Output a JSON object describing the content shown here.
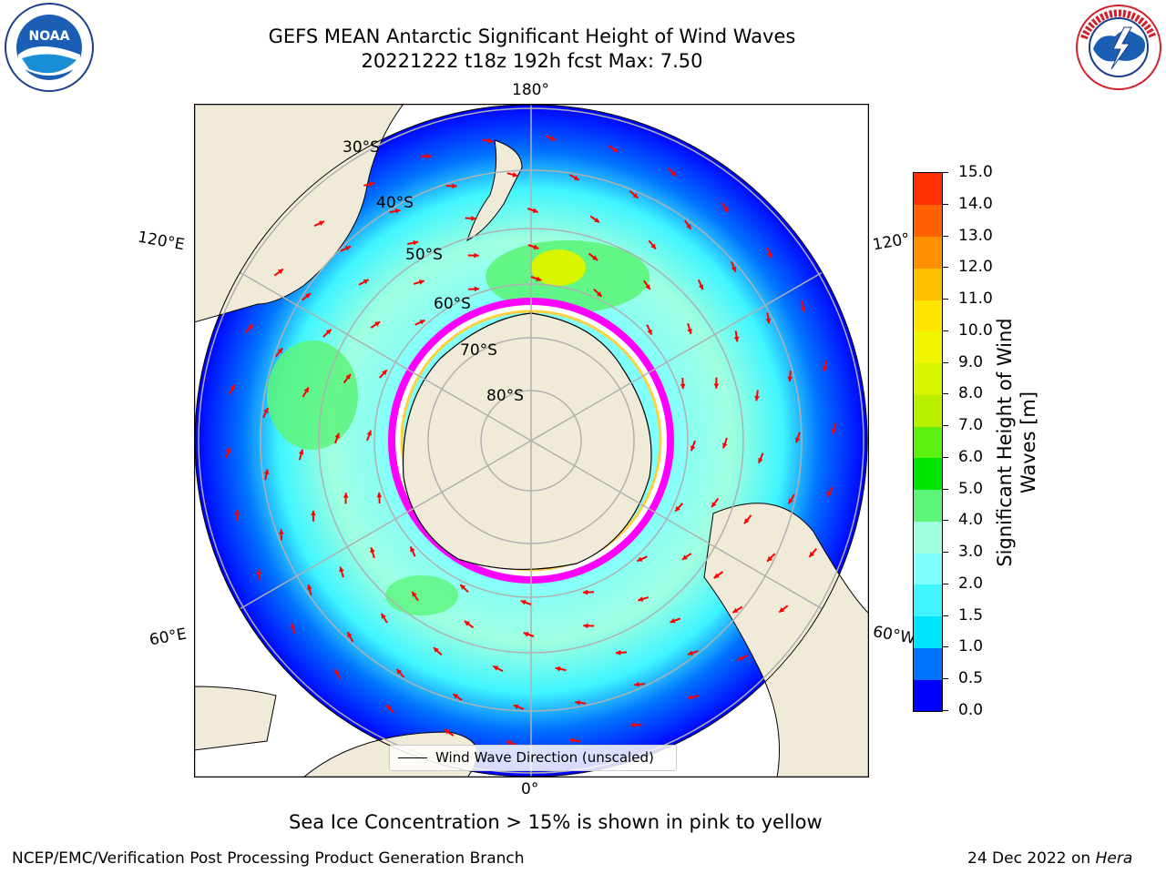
{
  "header": {
    "title_line1": "GEFS MEAN Antarctic Significant Height of Wind Waves",
    "title_line2": "20221222 t18z 192h fcst   Max: 7.50"
  },
  "logos": {
    "left": {
      "name": "NOAA",
      "text": "NOAA",
      "ring_text": "NATIONAL OCEANIC AND ATMOSPHERIC ADMINISTRATION · U.S. DEPARTMENT OF COMMERCE"
    },
    "right": {
      "name": "National Weather Service",
      "ring_text": "NATIONAL WEATHER SERVICE"
    }
  },
  "map": {
    "projection": "south-polar-stereographic",
    "longitude_labels": {
      "top": "180°",
      "bottom": "0°",
      "upper_left": "120°E",
      "upper_right": "120°",
      "lower_left": "60°E",
      "lower_right": "60°W"
    },
    "latitude_labels": [
      "30°S",
      "40°S",
      "50°S",
      "60°S",
      "70°S",
      "80°S"
    ],
    "legend_label": "Wind Wave Direction (unscaled)",
    "arrow_color": "#ff0000",
    "land_color": "#efebd8",
    "ocean_deep_color": "#0000ff",
    "ice_edge_colors": [
      "#ff00ff",
      "#ffffff",
      "#ffd040"
    ]
  },
  "colorbar": {
    "label": "Significant Height of Wind Waves [m]",
    "ticks": [
      "0.0",
      "0.5",
      "1.0",
      "1.5",
      "2.0",
      "3.0",
      "4.0",
      "5.0",
      "6.0",
      "7.0",
      "8.0",
      "9.0",
      "10.0",
      "11.0",
      "12.0",
      "13.0",
      "14.0",
      "15.0"
    ],
    "colors": [
      "#0000ff",
      "#0073ff",
      "#00e5ff",
      "#40f5ff",
      "#80ffff",
      "#a0ffe0",
      "#5cf57a",
      "#00e600",
      "#5cf010",
      "#b8f000",
      "#d8f500",
      "#f0f500",
      "#ffe600",
      "#ffc000",
      "#ff9000",
      "#ff6000",
      "#ff3000"
    ]
  },
  "caption": "Sea Ice Concentration > 15% is shown in pink to yellow",
  "footer": {
    "left": "NCEP/EMC/Verification Post Processing Product Generation Branch",
    "right_prefix": "24 Dec 2022 on ",
    "right_host": "Hera"
  }
}
